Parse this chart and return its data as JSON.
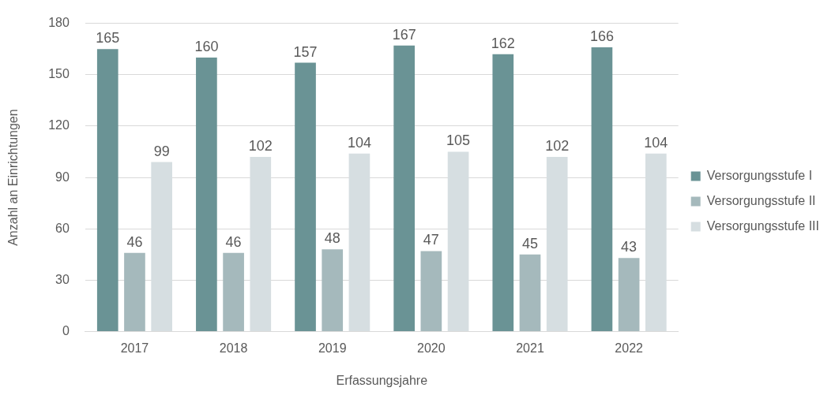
{
  "chart_data": {
    "type": "bar",
    "xlabel": "Erfassungsjahre",
    "ylabel": "Anzahl an Einrichtungen",
    "categories": [
      "2017",
      "2018",
      "2019",
      "2020",
      "2021",
      "2022"
    ],
    "series": [
      {
        "name": "Versorgungsstufe I",
        "color": "#6a9395",
        "values": [
          165,
          160,
          157,
          167,
          162,
          166
        ]
      },
      {
        "name": "Versorgungsstufe II",
        "color": "#a5b9bc",
        "values": [
          46,
          46,
          48,
          47,
          45,
          43
        ]
      },
      {
        "name": "Versorgungsstufe III",
        "color": "#d6dee1",
        "values": [
          99,
          102,
          104,
          105,
          102,
          104
        ]
      }
    ],
    "ylim": [
      0,
      180
    ],
    "yticks": [
      0,
      30,
      60,
      90,
      120,
      150,
      180
    ],
    "grid": "y",
    "legend": "right",
    "data_labels": true
  }
}
